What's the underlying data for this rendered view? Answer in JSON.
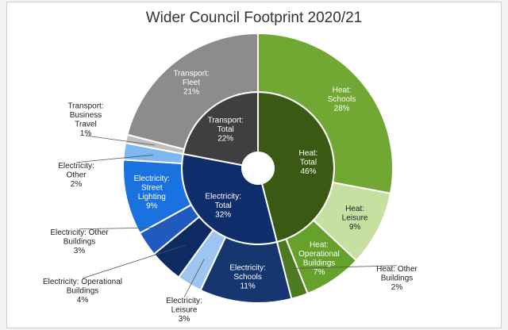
{
  "chart_data": {
    "type": "pie",
    "subtype": "sunburst",
    "title": "Wider Council Footprint 2020/21",
    "inner_ring": [
      {
        "name": "Heat: Total",
        "value": 46,
        "label": "46%",
        "color": "#3a5a14"
      },
      {
        "name": "Electricity: Total",
        "value": 32,
        "label": "32%",
        "color": "#0f2d6b"
      },
      {
        "name": "Transport: Total",
        "value": 22,
        "label": "22%",
        "color": "#3f3f3f"
      }
    ],
    "outer_ring": [
      {
        "name": "Heat: Schools",
        "value": 28,
        "label": "28%",
        "color": "#71a833"
      },
      {
        "name": "Heat: Leisure",
        "value": 9,
        "label": "9%",
        "color": "#c5e0a0"
      },
      {
        "name": "Heat: Operational Buildings",
        "value": 7,
        "label": "7%",
        "color": "#66a12c"
      },
      {
        "name": "Heat: Other Buildings",
        "value": 2,
        "label": "2%",
        "color": "#4c7a1f"
      },
      {
        "name": "Electricity: Schools",
        "value": 11,
        "label": "11%",
        "color": "#15366f"
      },
      {
        "name": "Electricity: Leisure",
        "value": 3,
        "label": "3%",
        "color": "#9ec5f2"
      },
      {
        "name": "Electricity: Operational Buildings",
        "value": 4,
        "label": "4%",
        "color": "#0d2a63"
      },
      {
        "name": "Electricity: Other Buildings",
        "value": 3,
        "label": "3%",
        "color": "#1f5bbf"
      },
      {
        "name": "Electricity: Street Lighting",
        "value": 9,
        "label": "9%",
        "color": "#1a72e0"
      },
      {
        "name": "Electricity: Other",
        "value": 2,
        "label": "2%",
        "color": "#7db8f0"
      },
      {
        "name": "Transport: Business Travel",
        "value": 1,
        "label": "1%",
        "color": "#bfbfbf"
      },
      {
        "name": "Transport: Fleet",
        "value": 21,
        "label": "21%",
        "color": "#8c8c8c"
      }
    ]
  }
}
